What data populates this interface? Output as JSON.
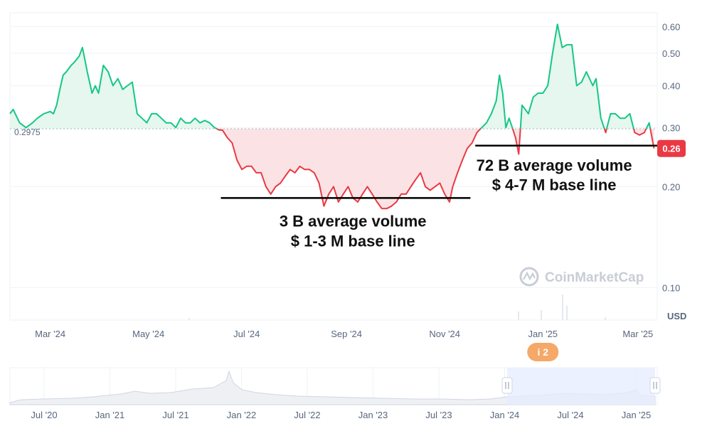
{
  "chart_data": {
    "type": "area",
    "title": "",
    "xlabel": "",
    "ylabel": "",
    "currency_label": "USD",
    "y_scale": "log",
    "ylim": [
      0.08,
      0.66
    ],
    "xlim": [
      "2024-02-05",
      "2025-03-13"
    ],
    "y_ticks": [
      {
        "value": 0.6,
        "label": "0.60"
      },
      {
        "value": 0.5,
        "label": "0.50"
      },
      {
        "value": 0.4,
        "label": "0.40"
      },
      {
        "value": 0.3,
        "label": "0.30"
      },
      {
        "value": 0.2,
        "label": "0.20"
      },
      {
        "value": 0.1,
        "label": "0.10"
      }
    ],
    "x_ticks": [
      {
        "date": "2024-03-01",
        "label": "Mar '24"
      },
      {
        "date": "2024-05-01",
        "label": "May '24"
      },
      {
        "date": "2024-07-01",
        "label": "Jul '24"
      },
      {
        "date": "2024-09-01",
        "label": "Sep '24"
      },
      {
        "date": "2024-11-01",
        "label": "Nov '24"
      },
      {
        "date": "2025-01-01",
        "label": "Jan '25"
      },
      {
        "date": "2025-03-01",
        "label": "Mar '25"
      }
    ],
    "baseline": {
      "value": 0.2975,
      "label": "0.2975"
    },
    "current_price": {
      "value": 0.26,
      "label": "0.26"
    },
    "colors": {
      "up": "#16c784",
      "down": "#ea3943",
      "up_fill": "#e0f6ec",
      "down_fill": "#fbe0e2",
      "grid": "#eff2f5",
      "baseline": "#a7b1c2",
      "event_badge": "#f5a867",
      "navigator_sel": "#e6ecff"
    },
    "series": [
      {
        "points": [
          [
            "2024-02-05",
            0.33
          ],
          [
            "2024-02-07",
            0.34
          ],
          [
            "2024-02-11",
            0.31
          ],
          [
            "2024-02-15",
            0.3
          ],
          [
            "2024-02-19",
            0.31
          ],
          [
            "2024-02-22",
            0.32
          ],
          [
            "2024-02-26",
            0.33
          ],
          [
            "2024-03-01",
            0.335
          ],
          [
            "2024-03-03",
            0.33
          ],
          [
            "2024-03-05",
            0.35
          ],
          [
            "2024-03-07",
            0.39
          ],
          [
            "2024-03-09",
            0.43
          ],
          [
            "2024-03-11",
            0.44
          ],
          [
            "2024-03-14",
            0.46
          ],
          [
            "2024-03-16",
            0.47
          ],
          [
            "2024-03-19",
            0.49
          ],
          [
            "2024-03-21",
            0.52
          ],
          [
            "2024-03-24",
            0.44
          ],
          [
            "2024-03-27",
            0.38
          ],
          [
            "2024-03-29",
            0.4
          ],
          [
            "2024-03-31",
            0.38
          ],
          [
            "2024-04-03",
            0.46
          ],
          [
            "2024-04-06",
            0.44
          ],
          [
            "2024-04-09",
            0.4
          ],
          [
            "2024-04-12",
            0.42
          ],
          [
            "2024-04-15",
            0.39
          ],
          [
            "2024-04-18",
            0.4
          ],
          [
            "2024-04-21",
            0.41
          ],
          [
            "2024-04-24",
            0.33
          ],
          [
            "2024-04-27",
            0.32
          ],
          [
            "2024-04-30",
            0.31
          ],
          [
            "2024-05-03",
            0.33
          ],
          [
            "2024-05-06",
            0.33
          ],
          [
            "2024-05-09",
            0.32
          ],
          [
            "2024-05-12",
            0.31
          ],
          [
            "2024-05-15",
            0.31
          ],
          [
            "2024-05-18",
            0.3
          ],
          [
            "2024-05-21",
            0.32
          ],
          [
            "2024-05-24",
            0.31
          ],
          [
            "2024-05-27",
            0.31
          ],
          [
            "2024-05-30",
            0.32
          ],
          [
            "2024-06-02",
            0.31
          ],
          [
            "2024-06-05",
            0.315
          ],
          [
            "2024-06-08",
            0.31
          ],
          [
            "2024-06-11",
            0.3
          ],
          [
            "2024-06-14",
            0.295
          ],
          [
            "2024-06-16",
            0.295
          ],
          [
            "2024-06-19",
            0.28
          ],
          [
            "2024-06-22",
            0.27
          ],
          [
            "2024-06-25",
            0.24
          ],
          [
            "2024-06-28",
            0.225
          ],
          [
            "2024-07-01",
            0.23
          ],
          [
            "2024-07-04",
            0.23
          ],
          [
            "2024-07-07",
            0.22
          ],
          [
            "2024-07-10",
            0.22
          ],
          [
            "2024-07-13",
            0.2
          ],
          [
            "2024-07-16",
            0.19
          ],
          [
            "2024-07-19",
            0.2
          ],
          [
            "2024-07-22",
            0.205
          ],
          [
            "2024-07-25",
            0.215
          ],
          [
            "2024-07-28",
            0.225
          ],
          [
            "2024-07-31",
            0.22
          ],
          [
            "2024-08-03",
            0.23
          ],
          [
            "2024-08-06",
            0.225
          ],
          [
            "2024-08-09",
            0.225
          ],
          [
            "2024-08-12",
            0.22
          ],
          [
            "2024-08-15",
            0.205
          ],
          [
            "2024-08-18",
            0.175
          ],
          [
            "2024-08-21",
            0.19
          ],
          [
            "2024-08-24",
            0.2
          ],
          [
            "2024-08-27",
            0.18
          ],
          [
            "2024-08-30",
            0.19
          ],
          [
            "2024-09-02",
            0.2
          ],
          [
            "2024-09-05",
            0.185
          ],
          [
            "2024-09-08",
            0.18
          ],
          [
            "2024-09-11",
            0.19
          ],
          [
            "2024-09-14",
            0.2
          ],
          [
            "2024-09-17",
            0.19
          ],
          [
            "2024-09-20",
            0.18
          ],
          [
            "2024-09-23",
            0.172
          ],
          [
            "2024-09-26",
            0.172
          ],
          [
            "2024-09-29",
            0.175
          ],
          [
            "2024-10-02",
            0.18
          ],
          [
            "2024-10-05",
            0.19
          ],
          [
            "2024-10-08",
            0.19
          ],
          [
            "2024-10-11",
            0.2
          ],
          [
            "2024-10-14",
            0.21
          ],
          [
            "2024-10-17",
            0.22
          ],
          [
            "2024-10-20",
            0.2
          ],
          [
            "2024-10-23",
            0.195
          ],
          [
            "2024-10-26",
            0.2
          ],
          [
            "2024-10-29",
            0.205
          ],
          [
            "2024-11-01",
            0.19
          ],
          [
            "2024-11-04",
            0.18
          ],
          [
            "2024-11-06",
            0.2
          ],
          [
            "2024-11-09",
            0.22
          ],
          [
            "2024-11-12",
            0.24
          ],
          [
            "2024-11-15",
            0.26
          ],
          [
            "2024-11-18",
            0.27
          ],
          [
            "2024-11-21",
            0.29
          ],
          [
            "2024-11-24",
            0.3
          ],
          [
            "2024-11-27",
            0.31
          ],
          [
            "2024-11-30",
            0.33
          ],
          [
            "2024-12-03",
            0.36
          ],
          [
            "2024-12-05",
            0.43
          ],
          [
            "2024-12-07",
            0.38
          ],
          [
            "2024-12-09",
            0.3
          ],
          [
            "2024-12-11",
            0.32
          ],
          [
            "2024-12-13",
            0.3
          ],
          [
            "2024-12-15",
            0.28
          ],
          [
            "2024-12-17",
            0.25
          ],
          [
            "2024-12-19",
            0.35
          ],
          [
            "2024-12-21",
            0.34
          ],
          [
            "2024-12-23",
            0.33
          ],
          [
            "2024-12-26",
            0.37
          ],
          [
            "2024-12-29",
            0.38
          ],
          [
            "2025-01-01",
            0.38
          ],
          [
            "2025-01-04",
            0.4
          ],
          [
            "2025-01-07",
            0.5
          ],
          [
            "2025-01-10",
            0.61
          ],
          [
            "2025-01-13",
            0.52
          ],
          [
            "2025-01-16",
            0.53
          ],
          [
            "2025-01-19",
            0.53
          ],
          [
            "2025-01-22",
            0.4
          ],
          [
            "2025-01-25",
            0.41
          ],
          [
            "2025-01-28",
            0.44
          ],
          [
            "2025-02-01",
            0.4
          ],
          [
            "2025-02-03",
            0.42
          ],
          [
            "2025-02-06",
            0.32
          ],
          [
            "2025-02-09",
            0.29
          ],
          [
            "2025-02-12",
            0.33
          ],
          [
            "2025-02-15",
            0.33
          ],
          [
            "2025-02-18",
            0.32
          ],
          [
            "2025-02-21",
            0.32
          ],
          [
            "2025-02-24",
            0.33
          ],
          [
            "2025-02-27",
            0.29
          ],
          [
            "2025-03-02",
            0.285
          ],
          [
            "2025-03-05",
            0.29
          ],
          [
            "2025-03-08",
            0.31
          ],
          [
            "2025-03-11",
            0.26
          ]
        ]
      }
    ]
  },
  "annotations": [
    {
      "id": "low",
      "lines": [
        "3 B average volume",
        "$ 1-3 M base line"
      ],
      "base_value": 0.185,
      "from": "2024-06-15",
      "to": "2024-11-17",
      "text_center": "2024-09-05",
      "line1_value": 0.158,
      "line2_value": 0.138
    },
    {
      "id": "high",
      "lines": [
        "72 B average volume",
        "$ 4-7 M base line"
      ],
      "base_value": 0.265,
      "from": "2024-11-20",
      "to": "2025-03-13",
      "text_center": "2025-01-08",
      "line1_value": 0.232,
      "line2_value": 0.203
    }
  ],
  "watermark": "CoinMarketCap",
  "event_badge": {
    "text": "i 2",
    "date": "2025-01-01"
  },
  "navigator": {
    "ticks": [
      "Jul '20",
      "Jan '21",
      "Jul '21",
      "Jan '22",
      "Jul '22",
      "Jan '23",
      "Jul '23",
      "Jan '24",
      "Jul '24",
      "Jan '25"
    ]
  }
}
